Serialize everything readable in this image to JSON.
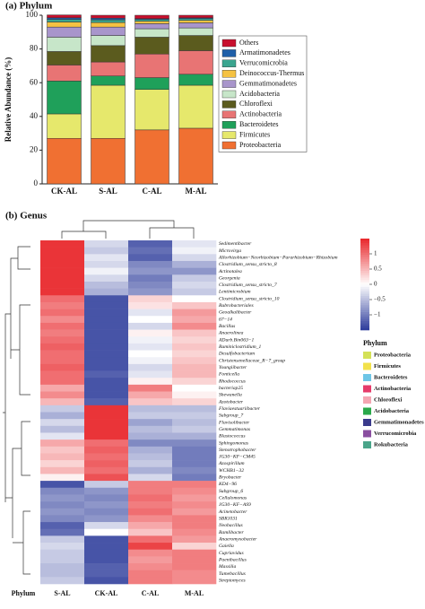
{
  "chart_data": [
    {
      "type": "stacked_bar",
      "title": "(a) Phylum",
      "y_label": "Relative Abundance (%)",
      "categories": [
        "CK-AL",
        "S-AL",
        "C-AL",
        "M-AL"
      ],
      "ylim": [
        0,
        100
      ],
      "yticks": [
        0,
        20,
        40,
        60,
        80,
        100
      ],
      "legend": "right",
      "series": [
        {
          "name": "Proteobacteria",
          "color": "#f07032",
          "values": [
            27,
            27,
            32,
            33
          ]
        },
        {
          "name": "Firmicutes",
          "color": "#e6e86c",
          "values": [
            14.5,
            31.5,
            24,
            25.5
          ]
        },
        {
          "name": "Bacteroidetes",
          "color": "#1fa05a",
          "values": [
            19.5,
            5.5,
            7,
            6.5
          ]
        },
        {
          "name": "Actinobacteria",
          "color": "#e87474",
          "values": [
            9.5,
            8.3,
            14,
            14
          ]
        },
        {
          "name": "Chloroflexi",
          "color": "#5b5b1e",
          "values": [
            8,
            9.7,
            10,
            9
          ]
        },
        {
          "name": "Acidobacteria",
          "color": "#c7e6c9",
          "values": [
            8.5,
            6,
            5,
            4.5
          ]
        },
        {
          "name": "Gemmatimonadetes",
          "color": "#a895cb",
          "values": [
            6,
            5,
            3,
            3
          ]
        },
        {
          "name": "Deinococcus-Thermus",
          "color": "#f5c242",
          "values": [
            3,
            2.7,
            1.5,
            1.5
          ]
        },
        {
          "name": "Verrucomicrobia",
          "color": "#3aa58f",
          "values": [
            1.5,
            1.6,
            1,
            1
          ]
        },
        {
          "name": "Armatimonadetes",
          "color": "#1f5fa8",
          "values": [
            1,
            1,
            0.5,
            0.5
          ]
        },
        {
          "name": "Others",
          "color": "#c8102e",
          "values": [
            1.7,
            1.7,
            2,
            1.5
          ]
        }
      ]
    },
    {
      "type": "heatmap",
      "title": "(b) Genus",
      "row_strip_label": "Phylum",
      "columns": [
        "S-AL",
        "CK-AL",
        "C-AL",
        "M-AL"
      ],
      "rows": [
        "Sedimentibacter",
        "Microvirga",
        "Allorhizobium−Neorhizobium−Pararhizobium−Rhizobium",
        "Clostridium_sensu_stricto_8",
        "Actinotalea",
        "Georgenia",
        "Clostridium_sensu_stricto_7",
        "Lentimicrobium",
        "Clostridium_sensu_stricto_10",
        "Rubrobacteriales",
        "Geoalkalibacter",
        "67−14",
        "Bacillus",
        "Anaerolinea",
        "ADurb.Bin063−1",
        "Ruminiclostridium_1",
        "Desulfobacterium",
        "Christensenellaceae_R−7_group",
        "Youngiibacter",
        "Fonticella",
        "Rhodococcus",
        "bacteriap25",
        "Shewanella",
        "Azotobacter",
        "Flaviaestuariibacter",
        "Subgroup_7",
        "Flavisolibacter",
        "Gemmatimonas",
        "Blastococcus",
        "Sphingomonas",
        "Stenotrophobacter",
        "JG30−KF−CM45",
        "Azospirillum",
        "WCHB1−32",
        "Bryobacter",
        "KD4−96",
        "Subgroup_6",
        "Cellulomonas",
        "JG30−KF−AS9",
        "Acinetobacter",
        "SBR1031",
        "Neobacillus",
        "Ramlibacter",
        "Anaeromyxobacter",
        "Gaiella",
        "Cupriavidus",
        "Paenibacillus",
        "Massilia",
        "Tumebacillus",
        "Streptomyces"
      ],
      "values": [
        [
          1.4,
          -0.3,
          -1.2,
          -0.2
        ],
        [
          1.4,
          -0.4,
          -1.1,
          -0.1
        ],
        [
          1.4,
          -0.2,
          -1.2,
          -0.3
        ],
        [
          1.4,
          -0.3,
          -0.9,
          -0.6
        ],
        [
          1.4,
          -0.1,
          -0.8,
          -0.8
        ],
        [
          1.4,
          -0.3,
          -1.0,
          -0.4
        ],
        [
          1.4,
          -0.5,
          -0.9,
          -0.3
        ],
        [
          1.4,
          -0.6,
          -0.8,
          -0.4
        ],
        [
          1.0,
          -1.3,
          0.3,
          0.0
        ],
        [
          0.9,
          -1.3,
          0.2,
          0.4
        ],
        [
          1.0,
          -1.3,
          -0.2,
          0.7
        ],
        [
          0.8,
          -1.3,
          0.0,
          0.6
        ],
        [
          1.0,
          -1.3,
          -0.3,
          0.8
        ],
        [
          0.9,
          -1.3,
          0.1,
          0.4
        ],
        [
          1.0,
          -1.3,
          -0.1,
          0.3
        ],
        [
          1.1,
          -1.3,
          -0.2,
          0.4
        ],
        [
          1.0,
          -1.3,
          0.0,
          0.3
        ],
        [
          1.0,
          -1.3,
          -0.1,
          0.4
        ],
        [
          1.1,
          -1.3,
          -0.3,
          0.5
        ],
        [
          1.0,
          -1.2,
          -0.2,
          0.5
        ],
        [
          1.0,
          -1.3,
          0.1,
          0.3
        ],
        [
          0.6,
          -1.3,
          0.9,
          0.0
        ],
        [
          0.8,
          -1.3,
          0.6,
          0.1
        ],
        [
          0.5,
          -1.2,
          0.4,
          0.3
        ],
        [
          -0.4,
          1.4,
          -0.5,
          -0.5
        ],
        [
          -0.6,
          1.4,
          -0.4,
          -0.4
        ],
        [
          -0.3,
          1.4,
          -0.7,
          -0.5
        ],
        [
          -0.5,
          1.4,
          -0.5,
          -0.4
        ],
        [
          -0.2,
          1.4,
          -0.6,
          -0.6
        ],
        [
          0.6,
          1.0,
          -0.9,
          -0.9
        ],
        [
          0.4,
          1.1,
          -0.6,
          -1.0
        ],
        [
          0.5,
          1.0,
          -0.5,
          -1.0
        ],
        [
          0.3,
          1.1,
          -0.4,
          -1.0
        ],
        [
          0.5,
          1.0,
          -0.6,
          -0.9
        ],
        [
          0.1,
          1.2,
          -0.3,
          -1.0
        ],
        [
          -1.3,
          -0.4,
          0.9,
          0.9
        ],
        [
          -0.9,
          -0.8,
          0.9,
          0.8
        ],
        [
          -0.8,
          -0.9,
          1.0,
          0.7
        ],
        [
          -0.9,
          -0.8,
          0.9,
          0.8
        ],
        [
          -0.8,
          -0.9,
          1.0,
          0.7
        ],
        [
          -0.9,
          -0.8,
          0.8,
          0.9
        ],
        [
          -1.2,
          -0.3,
          0.6,
          0.9
        ],
        [
          -1.1,
          0.0,
          0.4,
          0.8
        ],
        [
          -0.4,
          -1.3,
          1.0,
          0.7
        ],
        [
          -0.3,
          -1.3,
          1.3,
          0.3
        ],
        [
          -0.4,
          -1.3,
          0.8,
          0.9
        ],
        [
          -0.4,
          -1.3,
          0.7,
          0.9
        ],
        [
          -0.5,
          -1.2,
          0.8,
          0.9
        ],
        [
          -0.5,
          -1.2,
          0.9,
          0.8
        ],
        [
          -0.4,
          -1.3,
          0.9,
          0.8
        ]
      ],
      "zlim": [
        -1.5,
        1.5
      ],
      "colors": [
        "#2b3a9a",
        "#ffffff",
        "#e8262a"
      ],
      "zticks": [
        1,
        0.5,
        0,
        {
          "value": -0.5,
          "label": "−0.5"
        },
        {
          "value": -1,
          "label": "−1"
        }
      ],
      "legend_title": "Phylum",
      "legend": [
        {
          "name": "Proteobacteria",
          "color": "#d4e157"
        },
        {
          "name": "Firmicutes",
          "color": "#f2e14b"
        },
        {
          "name": "Bacteroidetes",
          "color": "#6ec6e6"
        },
        {
          "name": "Actinobacteria",
          "color": "#e63b6a"
        },
        {
          "name": "Chloroflexi",
          "color": "#f4a6b2"
        },
        {
          "name": "Acidobacteria",
          "color": "#2aa84a"
        },
        {
          "name": "Gemmatimonadetes",
          "color": "#3a3a8c"
        },
        {
          "name": "Verrucomicrobia",
          "color": "#8a4fa0"
        },
        {
          "name": "Rokubacteria",
          "color": "#4aa58a"
        }
      ]
    }
  ]
}
